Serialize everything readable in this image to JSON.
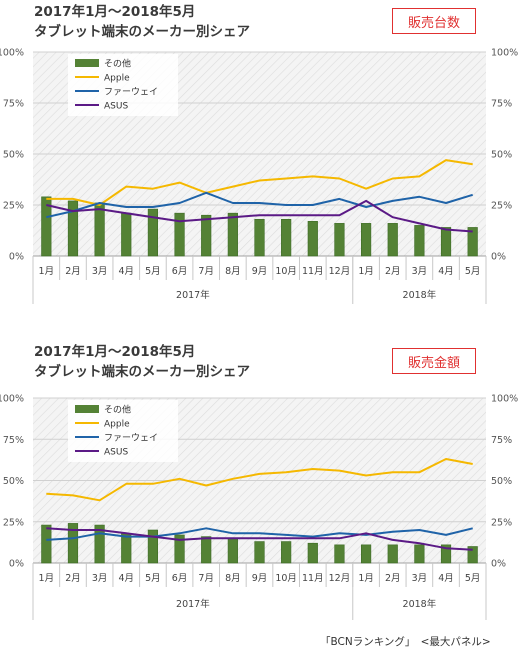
{
  "panels": [
    {
      "title_line1": "2017年1月～2018年5月",
      "title_line2": "タブレット端末のメーカー別シェア",
      "badge": "販売台数"
    },
    {
      "title_line1": "2017年1月～2018年5月",
      "title_line2": "タブレット端末のメーカー別シェア",
      "badge": "販売金額"
    }
  ],
  "source": "「BCNランキング」　<最大パネル>",
  "colors": {
    "other": "#548235",
    "apple": "#f5b800",
    "huawei": "#1f63a8",
    "asus": "#5b1a86"
  },
  "chart_data": [
    {
      "type": "bar",
      "categories": [
        "1月",
        "2月",
        "3月",
        "4月",
        "5月",
        "6月",
        "7月",
        "8月",
        "9月",
        "10月",
        "11月",
        "12月",
        "1月",
        "2月",
        "3月",
        "4月",
        "5月"
      ],
      "year_groups": [
        {
          "label": "2017年",
          "count": 12
        },
        {
          "label": "2018年",
          "count": 5
        }
      ],
      "yticks": [
        "0%",
        "25%",
        "50%",
        "75%",
        "100%"
      ],
      "ylim": [
        0,
        100
      ],
      "legend_position": "top-left",
      "series": [
        {
          "name": "その他",
          "kind": "bar",
          "values": [
            29,
            27,
            26,
            21,
            23,
            21,
            20,
            21,
            18,
            18,
            17,
            16,
            16,
            16,
            15,
            14,
            14
          ]
        },
        {
          "name": "Apple",
          "kind": "line",
          "values": [
            28,
            28,
            25,
            34,
            33,
            36,
            31,
            34,
            37,
            38,
            39,
            38,
            33,
            38,
            39,
            47,
            45
          ]
        },
        {
          "name": "ファーウェイ",
          "kind": "line",
          "values": [
            19,
            22,
            26,
            24,
            24,
            26,
            31,
            26,
            26,
            25,
            25,
            28,
            24,
            27,
            29,
            26,
            30
          ]
        },
        {
          "name": "ASUS",
          "kind": "line",
          "values": [
            25,
            22,
            23,
            21,
            19,
            17,
            18,
            19,
            20,
            20,
            20,
            20,
            27,
            19,
            16,
            13,
            12
          ]
        }
      ]
    },
    {
      "type": "bar",
      "categories": [
        "1月",
        "2月",
        "3月",
        "4月",
        "5月",
        "6月",
        "7月",
        "8月",
        "9月",
        "10月",
        "11月",
        "12月",
        "1月",
        "2月",
        "3月",
        "4月",
        "5月"
      ],
      "year_groups": [
        {
          "label": "2017年",
          "count": 12
        },
        {
          "label": "2018年",
          "count": 5
        }
      ],
      "yticks": [
        "0%",
        "25%",
        "50%",
        "75%",
        "100%"
      ],
      "ylim": [
        0,
        100
      ],
      "legend_position": "top-left",
      "series": [
        {
          "name": "その他",
          "kind": "bar",
          "values": [
            23,
            24,
            23,
            18,
            20,
            17,
            16,
            15,
            13,
            13,
            12,
            11,
            11,
            11,
            11,
            11,
            10
          ]
        },
        {
          "name": "Apple",
          "kind": "line",
          "values": [
            42,
            41,
            38,
            48,
            48,
            51,
            47,
            51,
            54,
            55,
            57,
            56,
            53,
            55,
            55,
            63,
            60
          ]
        },
        {
          "name": "ファーウェイ",
          "kind": "line",
          "values": [
            14,
            15,
            18,
            16,
            16,
            18,
            21,
            18,
            18,
            17,
            16,
            18,
            17,
            19,
            20,
            17,
            21
          ]
        },
        {
          "name": "ASUS",
          "kind": "line",
          "values": [
            21,
            20,
            20,
            18,
            16,
            14,
            15,
            15,
            15,
            15,
            15,
            15,
            18,
            14,
            12,
            9,
            8
          ]
        }
      ]
    }
  ]
}
